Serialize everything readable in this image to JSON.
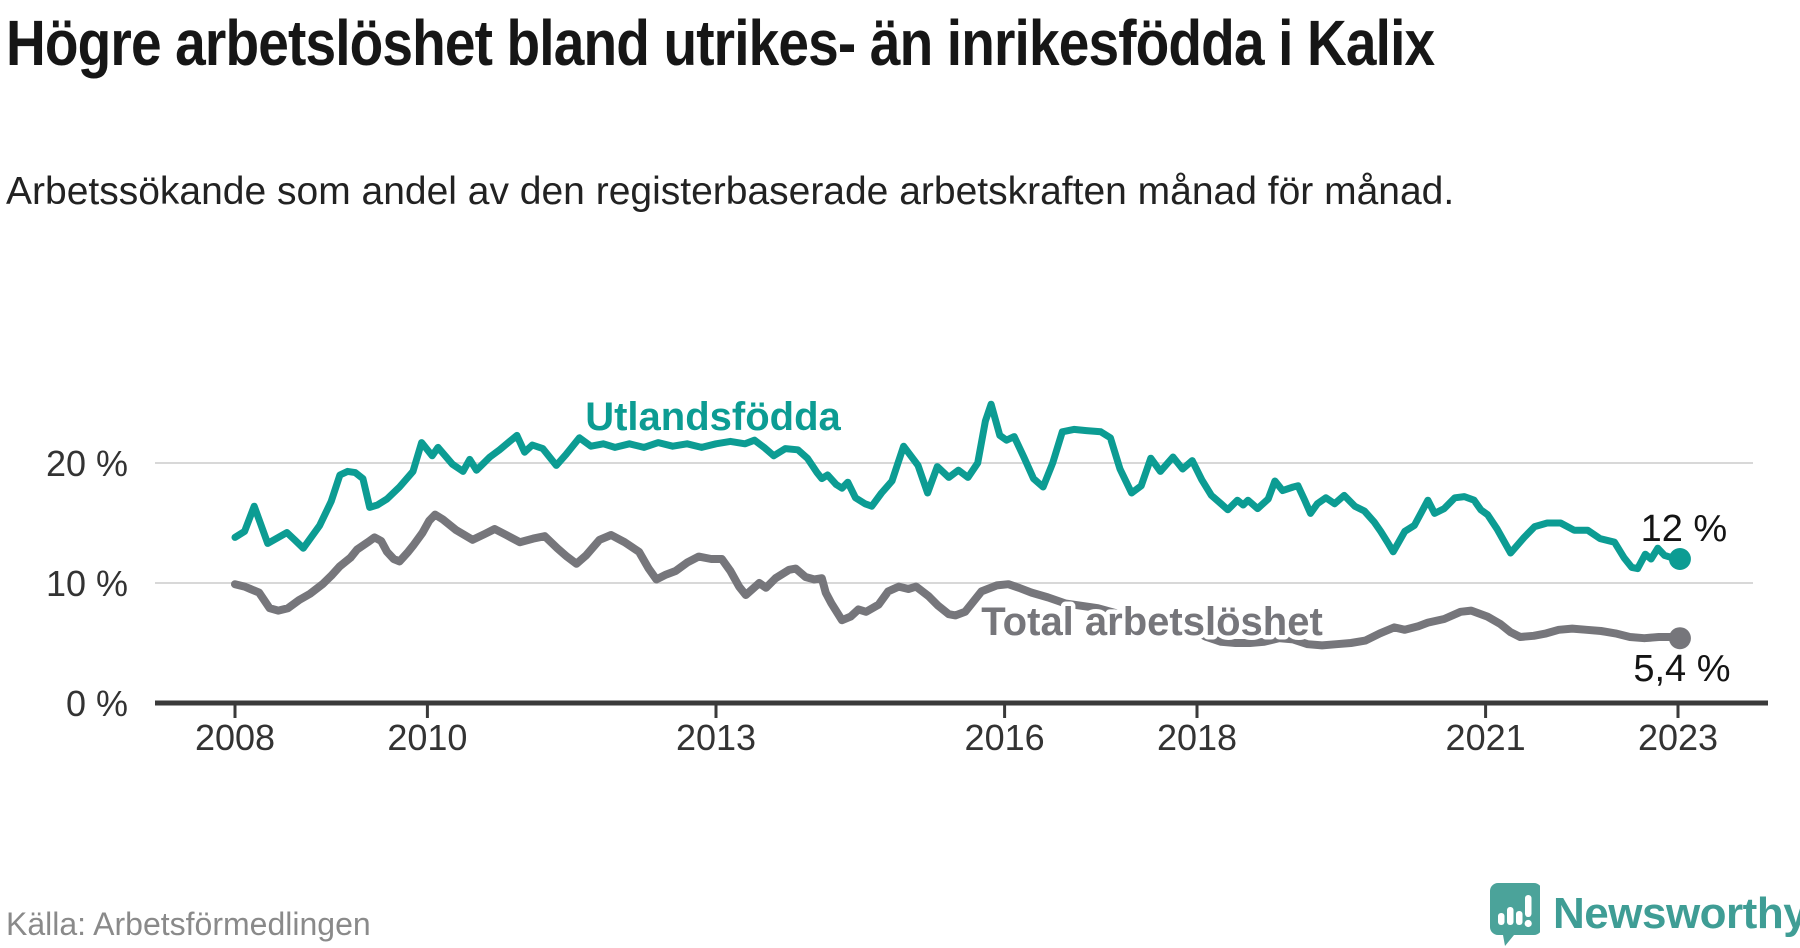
{
  "title": "Högre arbetslöshet bland utrikes- än inrikesfödda i Kalix",
  "subtitle": "Arbetssökande som andel av den registerbaserade arbetskraften månad för månad.",
  "source": "Källa: Arbetsförmedlingen",
  "branding": {
    "name": "Newsworthy",
    "icon": "newsworthy-speech-bubble-bar-chart-icon"
  },
  "colors": {
    "accent_teal": "#0C9C93",
    "series_gray": "#76767B",
    "grid": "#D8D8D8",
    "axis": "#3A3A3A",
    "tick_text": "#333333",
    "end_label_text": "#141414",
    "brand_teal": "#4BA39A"
  },
  "chart_data": {
    "type": "line",
    "title": "Högre arbetslöshet bland utrikes- än inrikesfödda i Kalix",
    "xlabel": "",
    "ylabel": "",
    "x_range": [
      2007.75,
      2023.35
    ],
    "y_range": [
      0,
      26
    ],
    "grid": true,
    "legend_position": "inline-labels",
    "x_axis": {
      "ticks": [
        2008,
        2010,
        2013,
        2016,
        2018,
        2021,
        2023
      ],
      "tick_labels": [
        "2008",
        "2010",
        "2013",
        "2016",
        "2018",
        "2021",
        "2023"
      ]
    },
    "y_axis": {
      "tick_values": [
        0,
        10,
        20
      ],
      "ticks": [
        "0 %",
        "10 %",
        "20 %"
      ]
    },
    "series": [
      {
        "name": "Utlandsfödda",
        "color": "#0C9C93",
        "end_label": "12 %",
        "end_value": 12,
        "points": [
          [
            2008.0,
            13.8
          ],
          [
            2008.1,
            14.3
          ],
          [
            2008.2,
            16.4
          ],
          [
            2008.34,
            13.3
          ],
          [
            2008.45,
            13.8
          ],
          [
            2008.54,
            14.2
          ],
          [
            2008.62,
            13.6
          ],
          [
            2008.71,
            12.9
          ],
          [
            2008.88,
            14.8
          ],
          [
            2009.0,
            16.8
          ],
          [
            2009.09,
            19.0
          ],
          [
            2009.17,
            19.3
          ],
          [
            2009.25,
            19.2
          ],
          [
            2009.33,
            18.7
          ],
          [
            2009.4,
            16.3
          ],
          [
            2009.48,
            16.5
          ],
          [
            2009.58,
            17.0
          ],
          [
            2009.71,
            18.0
          ],
          [
            2009.85,
            19.3
          ],
          [
            2009.94,
            21.7
          ],
          [
            2010.05,
            20.6
          ],
          [
            2010.11,
            21.3
          ],
          [
            2010.26,
            19.9
          ],
          [
            2010.37,
            19.3
          ],
          [
            2010.44,
            20.3
          ],
          [
            2010.51,
            19.4
          ],
          [
            2010.65,
            20.5
          ],
          [
            2010.75,
            21.1
          ],
          [
            2010.93,
            22.3
          ],
          [
            2011.01,
            20.9
          ],
          [
            2011.09,
            21.5
          ],
          [
            2011.2,
            21.2
          ],
          [
            2011.34,
            19.8
          ],
          [
            2011.44,
            20.7
          ],
          [
            2011.58,
            22.1
          ],
          [
            2011.7,
            21.4
          ],
          [
            2011.83,
            21.6
          ],
          [
            2011.95,
            21.3
          ],
          [
            2012.1,
            21.6
          ],
          [
            2012.25,
            21.3
          ],
          [
            2012.4,
            21.7
          ],
          [
            2012.55,
            21.4
          ],
          [
            2012.7,
            21.6
          ],
          [
            2012.85,
            21.3
          ],
          [
            2013.0,
            21.6
          ],
          [
            2013.15,
            21.8
          ],
          [
            2013.3,
            21.6
          ],
          [
            2013.4,
            21.9
          ],
          [
            2013.5,
            21.3
          ],
          [
            2013.6,
            20.6
          ],
          [
            2013.72,
            21.2
          ],
          [
            2013.85,
            21.1
          ],
          [
            2013.95,
            20.4
          ],
          [
            2014.05,
            19.2
          ],
          [
            2014.1,
            18.7
          ],
          [
            2014.16,
            19.0
          ],
          [
            2014.25,
            18.2
          ],
          [
            2014.31,
            17.9
          ],
          [
            2014.37,
            18.4
          ],
          [
            2014.45,
            17.1
          ],
          [
            2014.55,
            16.6
          ],
          [
            2014.62,
            16.4
          ],
          [
            2014.72,
            17.5
          ],
          [
            2014.83,
            18.5
          ],
          [
            2014.95,
            21.4
          ],
          [
            2015.1,
            19.8
          ],
          [
            2015.2,
            17.5
          ],
          [
            2015.3,
            19.7
          ],
          [
            2015.42,
            18.8
          ],
          [
            2015.52,
            19.4
          ],
          [
            2015.62,
            18.8
          ],
          [
            2015.72,
            20.0
          ],
          [
            2015.8,
            23.5
          ],
          [
            2015.86,
            24.9
          ],
          [
            2015.95,
            22.3
          ],
          [
            2016.02,
            21.9
          ],
          [
            2016.1,
            22.2
          ],
          [
            2016.2,
            20.5
          ],
          [
            2016.3,
            18.7
          ],
          [
            2016.4,
            18.0
          ],
          [
            2016.5,
            20.0
          ],
          [
            2016.6,
            22.6
          ],
          [
            2016.72,
            22.8
          ],
          [
            2016.85,
            22.7
          ],
          [
            2017.0,
            22.6
          ],
          [
            2017.1,
            22.1
          ],
          [
            2017.2,
            19.5
          ],
          [
            2017.32,
            17.5
          ],
          [
            2017.42,
            18.1
          ],
          [
            2017.52,
            20.4
          ],
          [
            2017.62,
            19.3
          ],
          [
            2017.75,
            20.5
          ],
          [
            2017.85,
            19.5
          ],
          [
            2017.95,
            20.2
          ],
          [
            2018.05,
            18.6
          ],
          [
            2018.15,
            17.3
          ],
          [
            2018.25,
            16.6
          ],
          [
            2018.32,
            16.1
          ],
          [
            2018.42,
            16.9
          ],
          [
            2018.48,
            16.5
          ],
          [
            2018.53,
            16.9
          ],
          [
            2018.63,
            16.2
          ],
          [
            2018.74,
            17.0
          ],
          [
            2018.81,
            18.5
          ],
          [
            2018.89,
            17.7
          ],
          [
            2019.0,
            18.0
          ],
          [
            2019.05,
            18.1
          ],
          [
            2019.12,
            16.9
          ],
          [
            2019.18,
            15.8
          ],
          [
            2019.25,
            16.6
          ],
          [
            2019.34,
            17.1
          ],
          [
            2019.43,
            16.6
          ],
          [
            2019.53,
            17.3
          ],
          [
            2019.64,
            16.4
          ],
          [
            2019.74,
            16.0
          ],
          [
            2019.84,
            15.1
          ],
          [
            2019.91,
            14.3
          ],
          [
            2019.98,
            13.4
          ],
          [
            2020.04,
            12.6
          ],
          [
            2020.16,
            14.3
          ],
          [
            2020.26,
            14.8
          ],
          [
            2020.4,
            16.9
          ],
          [
            2020.47,
            15.8
          ],
          [
            2020.57,
            16.2
          ],
          [
            2020.68,
            17.1
          ],
          [
            2020.78,
            17.2
          ],
          [
            2020.88,
            16.9
          ],
          [
            2020.95,
            16.1
          ],
          [
            2021.02,
            15.7
          ],
          [
            2021.12,
            14.5
          ],
          [
            2021.26,
            12.5
          ],
          [
            2021.4,
            13.8
          ],
          [
            2021.51,
            14.7
          ],
          [
            2021.64,
            15.0
          ],
          [
            2021.78,
            15.0
          ],
          [
            2021.92,
            14.4
          ],
          [
            2022.06,
            14.4
          ],
          [
            2022.19,
            13.7
          ],
          [
            2022.34,
            13.4
          ],
          [
            2022.44,
            12.1
          ],
          [
            2022.52,
            11.3
          ],
          [
            2022.58,
            11.2
          ],
          [
            2022.66,
            12.4
          ],
          [
            2022.72,
            12.0
          ],
          [
            2022.79,
            12.9
          ],
          [
            2022.86,
            12.3
          ],
          [
            2022.94,
            12.1
          ],
          [
            2023.02,
            12.0
          ]
        ]
      },
      {
        "name": "Total arbetslöshet",
        "color": "#76767B",
        "end_label": "5,4 %",
        "end_value": 5.4,
        "points": [
          [
            2008.0,
            9.9
          ],
          [
            2008.1,
            9.7
          ],
          [
            2008.16,
            9.5
          ],
          [
            2008.25,
            9.2
          ],
          [
            2008.36,
            7.9
          ],
          [
            2008.45,
            7.7
          ],
          [
            2008.55,
            7.9
          ],
          [
            2008.67,
            8.6
          ],
          [
            2008.78,
            9.1
          ],
          [
            2008.91,
            9.9
          ],
          [
            2009.0,
            10.6
          ],
          [
            2009.09,
            11.4
          ],
          [
            2009.2,
            12.1
          ],
          [
            2009.27,
            12.8
          ],
          [
            2009.38,
            13.4
          ],
          [
            2009.45,
            13.8
          ],
          [
            2009.52,
            13.5
          ],
          [
            2009.58,
            12.6
          ],
          [
            2009.65,
            12.0
          ],
          [
            2009.71,
            11.8
          ],
          [
            2009.8,
            12.6
          ],
          [
            2009.85,
            13.1
          ],
          [
            2009.95,
            14.2
          ],
          [
            2010.02,
            15.2
          ],
          [
            2010.08,
            15.7
          ],
          [
            2010.16,
            15.3
          ],
          [
            2010.3,
            14.4
          ],
          [
            2010.47,
            13.6
          ],
          [
            2010.6,
            14.1
          ],
          [
            2010.7,
            14.5
          ],
          [
            2010.82,
            14.0
          ],
          [
            2010.96,
            13.4
          ],
          [
            2011.1,
            13.7
          ],
          [
            2011.22,
            13.9
          ],
          [
            2011.35,
            12.9
          ],
          [
            2011.45,
            12.2
          ],
          [
            2011.55,
            11.6
          ],
          [
            2011.65,
            12.3
          ],
          [
            2011.79,
            13.6
          ],
          [
            2011.91,
            14.0
          ],
          [
            2012.05,
            13.4
          ],
          [
            2012.2,
            12.6
          ],
          [
            2012.3,
            11.2
          ],
          [
            2012.38,
            10.3
          ],
          [
            2012.48,
            10.7
          ],
          [
            2012.58,
            11.0
          ],
          [
            2012.7,
            11.7
          ],
          [
            2012.82,
            12.2
          ],
          [
            2012.95,
            12.0
          ],
          [
            2013.06,
            12.0
          ],
          [
            2013.15,
            11.0
          ],
          [
            2013.24,
            9.7
          ],
          [
            2013.31,
            9.0
          ],
          [
            2013.38,
            9.5
          ],
          [
            2013.45,
            10.0
          ],
          [
            2013.52,
            9.6
          ],
          [
            2013.62,
            10.4
          ],
          [
            2013.76,
            11.1
          ],
          [
            2013.83,
            11.2
          ],
          [
            2013.93,
            10.5
          ],
          [
            2014.02,
            10.3
          ],
          [
            2014.1,
            10.4
          ],
          [
            2014.14,
            9.2
          ],
          [
            2014.2,
            8.3
          ],
          [
            2014.31,
            6.9
          ],
          [
            2014.4,
            7.2
          ],
          [
            2014.48,
            7.8
          ],
          [
            2014.56,
            7.6
          ],
          [
            2014.69,
            8.2
          ],
          [
            2014.79,
            9.3
          ],
          [
            2014.9,
            9.7
          ],
          [
            2015.0,
            9.5
          ],
          [
            2015.08,
            9.7
          ],
          [
            2015.21,
            8.9
          ],
          [
            2015.31,
            8.1
          ],
          [
            2015.42,
            7.4
          ],
          [
            2015.49,
            7.3
          ],
          [
            2015.59,
            7.6
          ],
          [
            2015.76,
            9.3
          ],
          [
            2015.92,
            9.8
          ],
          [
            2016.04,
            9.9
          ],
          [
            2016.15,
            9.6
          ],
          [
            2016.28,
            9.2
          ],
          [
            2016.45,
            8.8
          ],
          [
            2016.63,
            8.3
          ],
          [
            2016.8,
            8.1
          ],
          [
            2016.97,
            7.9
          ],
          [
            2017.15,
            7.5
          ],
          [
            2017.35,
            7.1
          ],
          [
            2017.55,
            6.8
          ],
          [
            2017.75,
            6.5
          ],
          [
            2017.95,
            6.1
          ],
          [
            2018.1,
            5.5
          ],
          [
            2018.25,
            5.1
          ],
          [
            2018.4,
            5.0
          ],
          [
            2018.55,
            5.0
          ],
          [
            2018.7,
            5.1
          ],
          [
            2018.85,
            5.4
          ],
          [
            2019.0,
            5.3
          ],
          [
            2019.15,
            4.9
          ],
          [
            2019.3,
            4.8
          ],
          [
            2019.45,
            4.9
          ],
          [
            2019.6,
            5.0
          ],
          [
            2019.75,
            5.2
          ],
          [
            2019.9,
            5.8
          ],
          [
            2020.05,
            6.3
          ],
          [
            2020.16,
            6.1
          ],
          [
            2020.3,
            6.4
          ],
          [
            2020.4,
            6.7
          ],
          [
            2020.57,
            7.0
          ],
          [
            2020.74,
            7.6
          ],
          [
            2020.85,
            7.7
          ],
          [
            2021.02,
            7.2
          ],
          [
            2021.15,
            6.6
          ],
          [
            2021.26,
            5.9
          ],
          [
            2021.36,
            5.5
          ],
          [
            2021.5,
            5.6
          ],
          [
            2021.63,
            5.8
          ],
          [
            2021.76,
            6.1
          ],
          [
            2021.9,
            6.2
          ],
          [
            2022.05,
            6.1
          ],
          [
            2022.2,
            6.0
          ],
          [
            2022.35,
            5.8
          ],
          [
            2022.5,
            5.5
          ],
          [
            2022.65,
            5.4
          ],
          [
            2022.8,
            5.5
          ],
          [
            2022.92,
            5.5
          ],
          [
            2023.02,
            5.4
          ]
        ]
      }
    ]
  }
}
